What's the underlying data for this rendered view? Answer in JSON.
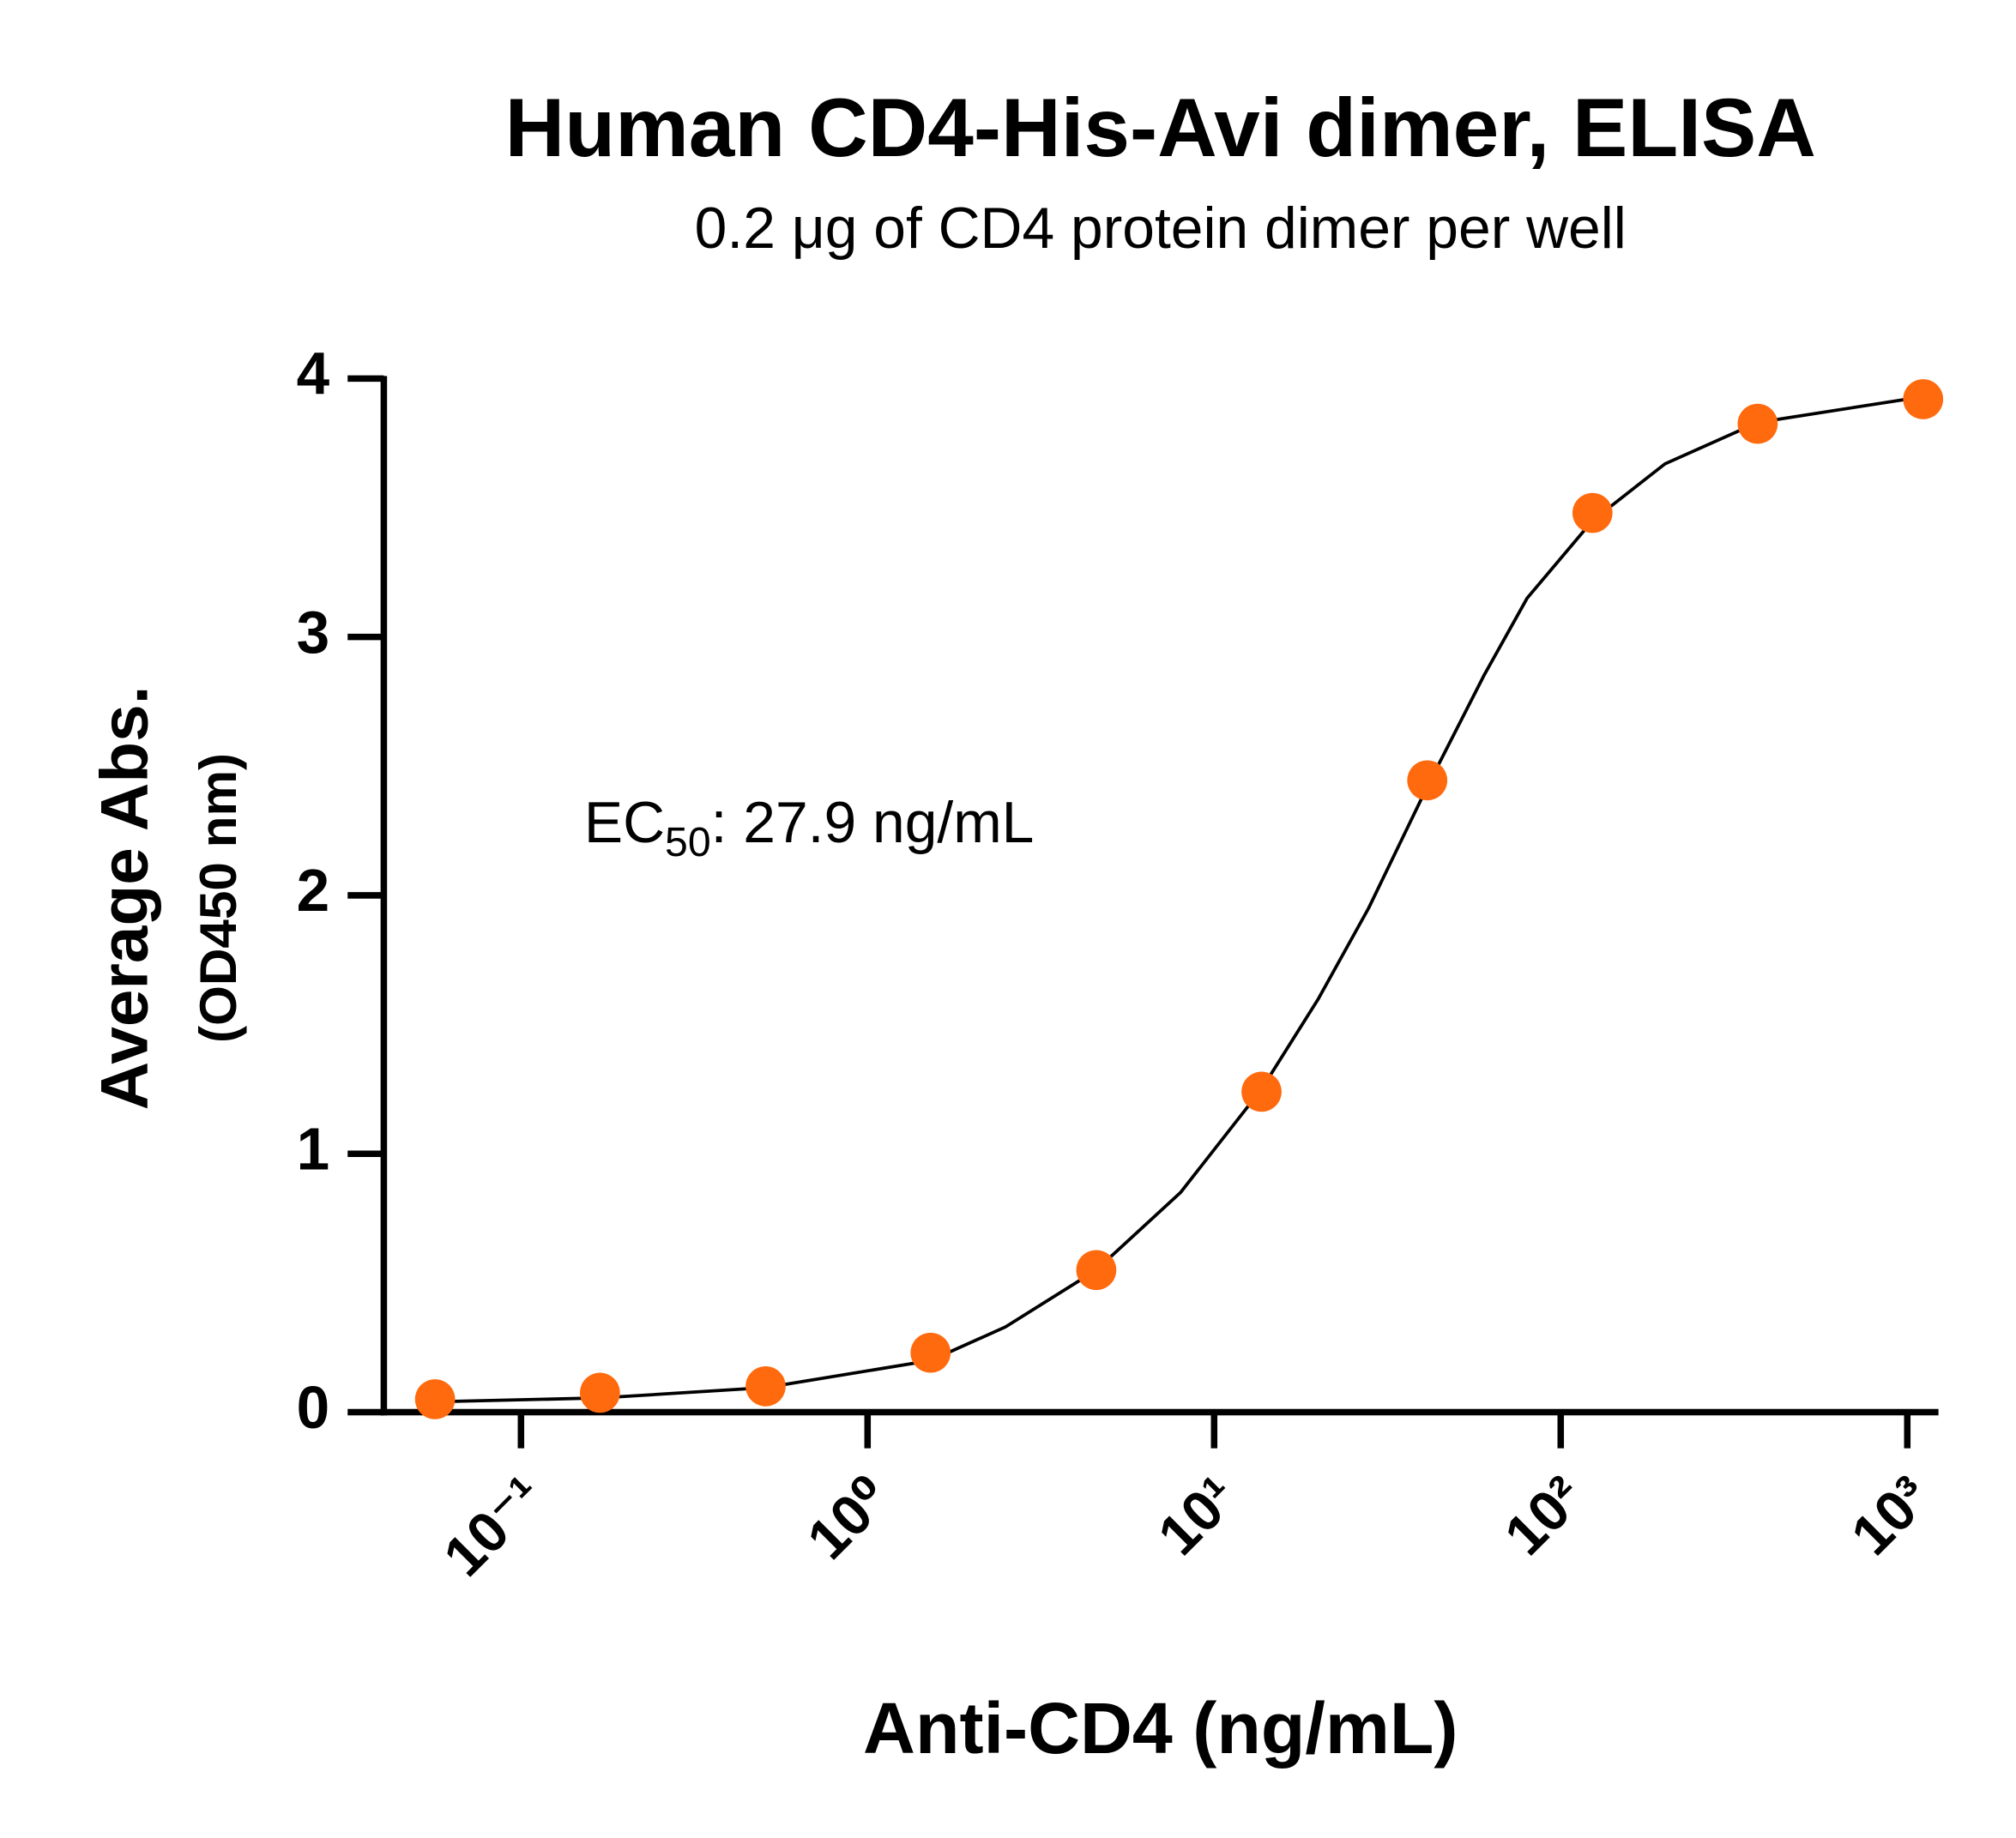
{
  "chart_data": {
    "type": "scatter",
    "title": "Human CD4-His-Avi dimer, ELISA",
    "subtitle": "0.2 μg of CD4 protein dimer per well",
    "x_label": "Anti-CD4 (ng/mL)",
    "y_label": "Average Abs.",
    "y_label_sub": "(OD450 nm)",
    "annotation": {
      "text": "EC",
      "subscript": "50",
      "suffix": ": 27.9 ng/mL"
    },
    "x": [
      0.0565,
      0.169,
      0.508,
      1.52,
      4.57,
      13.7,
      41.2,
      123.5,
      370,
      1111
    ],
    "values": [
      0.05,
      0.075,
      0.1,
      0.23,
      0.55,
      1.24,
      2.445,
      3.48,
      3.825,
      3.92
    ],
    "color": "#ff6a0e",
    "curve": {
      "x": [
        0.0565,
        0.169,
        0.508,
        1.52,
        2.5,
        4.57,
        8,
        13.7,
        20,
        27.9,
        41.2,
        60,
        80,
        123.5,
        200,
        370,
        1111
      ],
      "values": [
        0.04,
        0.055,
        0.095,
        0.2,
        0.33,
        0.55,
        0.85,
        1.25,
        1.6,
        1.95,
        2.42,
        2.85,
        3.15,
        3.45,
        3.67,
        3.83,
        3.93
      ],
      "color": "#000000"
    },
    "xlog": true,
    "xlim": [
      0.0402,
      1230
    ],
    "xticks": [
      {
        "value": 0.1,
        "label": "10⁻¹"
      },
      {
        "value": 1,
        "label": "10⁰"
      },
      {
        "value": 10,
        "label": "10¹"
      },
      {
        "value": 100,
        "label": "10²"
      },
      {
        "value": 1000,
        "label": "10³"
      }
    ],
    "ylim": [
      0,
      4
    ],
    "yticks": [
      0,
      1,
      2,
      3,
      4
    ]
  }
}
